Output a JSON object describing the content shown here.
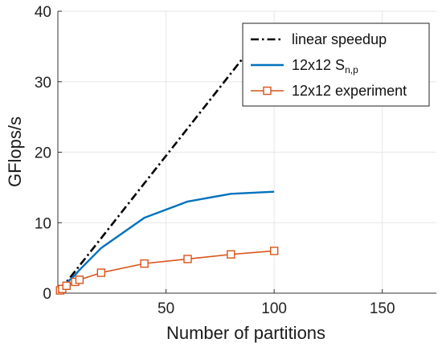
{
  "chart_data": {
    "type": "line",
    "xlabel": "Number of partitions",
    "ylabel": "GFlops/s",
    "xlim": [
      0,
      175
    ],
    "ylim": [
      0,
      40
    ],
    "xticks": [
      50,
      100,
      150
    ],
    "yticks": [
      0,
      10,
      20,
      30,
      40
    ],
    "grid": true,
    "legend_position": "top-right",
    "series": [
      {
        "name": "linear speedup",
        "style": "dash-dot",
        "color": "#000000",
        "marker": "none",
        "x": [
          1,
          88
        ],
        "y": [
          0.39,
          34.3
        ]
      },
      {
        "name": "12x12 S",
        "name_subscript": "n,p",
        "style": "solid",
        "color": "#0072BD",
        "marker": "none",
        "x": [
          1,
          2,
          4,
          8,
          10,
          20,
          40,
          60,
          80,
          100
        ],
        "y": [
          0.39,
          0.75,
          1.45,
          2.6,
          3.3,
          6.4,
          10.7,
          13.0,
          14.1,
          14.4
        ]
      },
      {
        "name": "12x12 experiment",
        "style": "solid",
        "color": "#D95319",
        "marker": "square",
        "x": [
          1,
          2,
          4,
          8,
          10,
          20,
          40,
          60,
          80,
          100
        ],
        "y": [
          0.39,
          0.6,
          1.05,
          1.6,
          1.9,
          2.9,
          4.2,
          4.85,
          5.5,
          6.0
        ]
      }
    ]
  }
}
